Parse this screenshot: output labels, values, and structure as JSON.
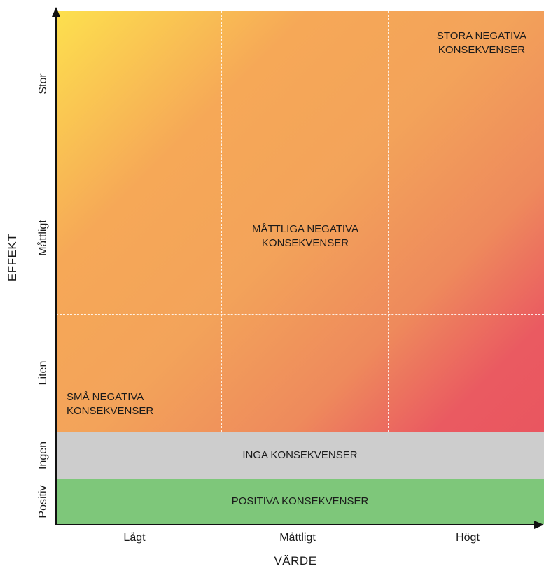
{
  "chart_data": {
    "type": "risk-matrix",
    "xlabel": "VÄRDE",
    "ylabel": "EFFEKT",
    "x_categories": [
      "Lågt",
      "Måttligt",
      "Högt"
    ],
    "y_categories": [
      "Positiv",
      "Ingen",
      "Liten",
      "Måttligt",
      "Stor"
    ],
    "zones": {
      "small": "SMÅ NEGATIVA KONSEKVENSER",
      "moderate": "MÅTTLIGA NEGATIVA KONSEKVENSER",
      "large": "STORA NEGATIVA KONSEKVENSER",
      "none": "INGA KONSEKVENSER",
      "positive": "POSITIVA KONSEKVENSER"
    },
    "zone_lines": {
      "small": [
        "SMÅ NEGATIVA",
        "KONSEKVENSER"
      ],
      "moderate": [
        "MÅTTLIGA NEGATIVA",
        "KONSEKVENSER"
      ],
      "large": [
        "STORA NEGATIVA",
        "KONSEKVENSER"
      ]
    },
    "colors": {
      "yellow": "#fde04e",
      "orange": "#f3a35a",
      "red": "#e95660",
      "grey": "#cdcdcd",
      "green": "#7ec77a"
    }
  }
}
